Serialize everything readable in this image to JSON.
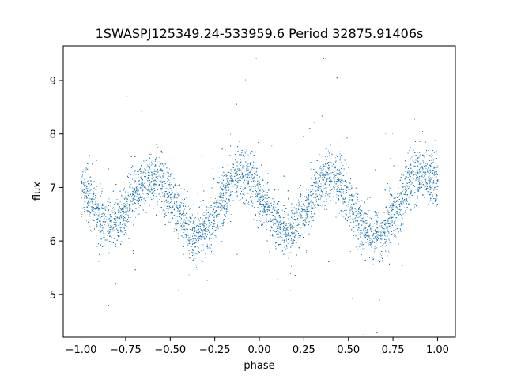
{
  "chart_data": {
    "type": "scatter",
    "title": "1SWASPJ125349.24-533959.6 Period 32875.91406s",
    "xlabel": "phase",
    "ylabel": "flux",
    "xlim": [
      -1.1,
      1.1
    ],
    "ylim": [
      4.2,
      9.65
    ],
    "xticks": [
      -1.0,
      -0.75,
      -0.5,
      -0.25,
      0.0,
      0.25,
      0.5,
      0.75,
      1.0
    ],
    "xtick_labels": [
      "−1.00",
      "−0.75",
      "−0.50",
      "−0.25",
      "0.00",
      "0.25",
      "0.50",
      "0.75",
      "1.00"
    ],
    "yticks": [
      5,
      6,
      7,
      8,
      9
    ],
    "ytick_labels": [
      "5",
      "6",
      "7",
      "8",
      "9"
    ],
    "grid": false,
    "legend": "none",
    "point_color": "#1f77b4",
    "series": [
      {
        "name": "",
        "x_range": [
          -1.0,
          1.0
        ],
        "curve_phase": [
          -1.0,
          -0.85,
          -0.6,
          -0.35,
          -0.1,
          0.15,
          0.4,
          0.65,
          0.9,
          1.0
        ],
        "curve_flux": [
          6.95,
          6.3,
          7.2,
          6.1,
          7.25,
          6.2,
          7.2,
          6.1,
          7.25,
          7.1
        ],
        "scatter_spread": 0.35,
        "n_points": 14000
      }
    ]
  }
}
